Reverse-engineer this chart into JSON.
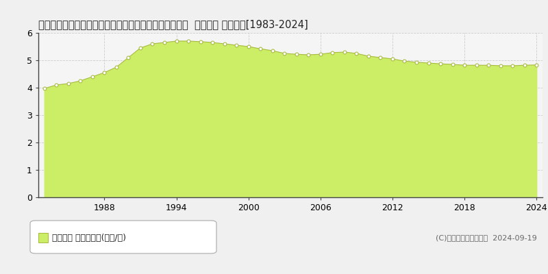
{
  "title": "栃木県下都賀郡壬生町大字安塚字西原２３８９番１１外  公示地価 地価推移[1983-2024]",
  "years": [
    1983,
    1984,
    1985,
    1986,
    1987,
    1988,
    1989,
    1990,
    1991,
    1992,
    1993,
    1994,
    1995,
    1996,
    1997,
    1998,
    1999,
    2000,
    2001,
    2002,
    2003,
    2004,
    2005,
    2006,
    2007,
    2008,
    2009,
    2010,
    2011,
    2012,
    2013,
    2014,
    2015,
    2016,
    2017,
    2018,
    2019,
    2020,
    2021,
    2022,
    2023,
    2024
  ],
  "values": [
    3.97,
    4.1,
    4.15,
    4.25,
    4.4,
    4.55,
    4.75,
    5.1,
    5.45,
    5.6,
    5.65,
    5.7,
    5.7,
    5.68,
    5.65,
    5.6,
    5.55,
    5.5,
    5.42,
    5.35,
    5.25,
    5.22,
    5.2,
    5.22,
    5.28,
    5.3,
    5.25,
    5.15,
    5.1,
    5.05,
    4.97,
    4.93,
    4.9,
    4.87,
    4.85,
    4.82,
    4.82,
    4.82,
    4.8,
    4.8,
    4.82,
    4.83
  ],
  "fill_color": "#ccee66",
  "line_color": "#aabb44",
  "marker_facecolor": "#ffffff",
  "marker_edgecolor": "#aabb44",
  "bg_color": "#f0f0f0",
  "plot_bg_color": "#f5f5f5",
  "grid_color": "#cccccc",
  "spine_color": "#444444",
  "ylim": [
    0,
    6
  ],
  "yticks": [
    0,
    1,
    2,
    3,
    4,
    5,
    6
  ],
  "xticks": [
    1988,
    1994,
    2000,
    2006,
    2012,
    2018,
    2024
  ],
  "legend_label": "公示地価 平均坪単価(万円/坪)",
  "legend_marker_color": "#ccee66",
  "legend_marker_edge": "#aabb44",
  "copyright_text": "(C)土地価格ドットコム  2024-09-19",
  "title_fontsize": 10.5,
  "tick_fontsize": 9,
  "legend_fontsize": 9,
  "copyright_fontsize": 8
}
